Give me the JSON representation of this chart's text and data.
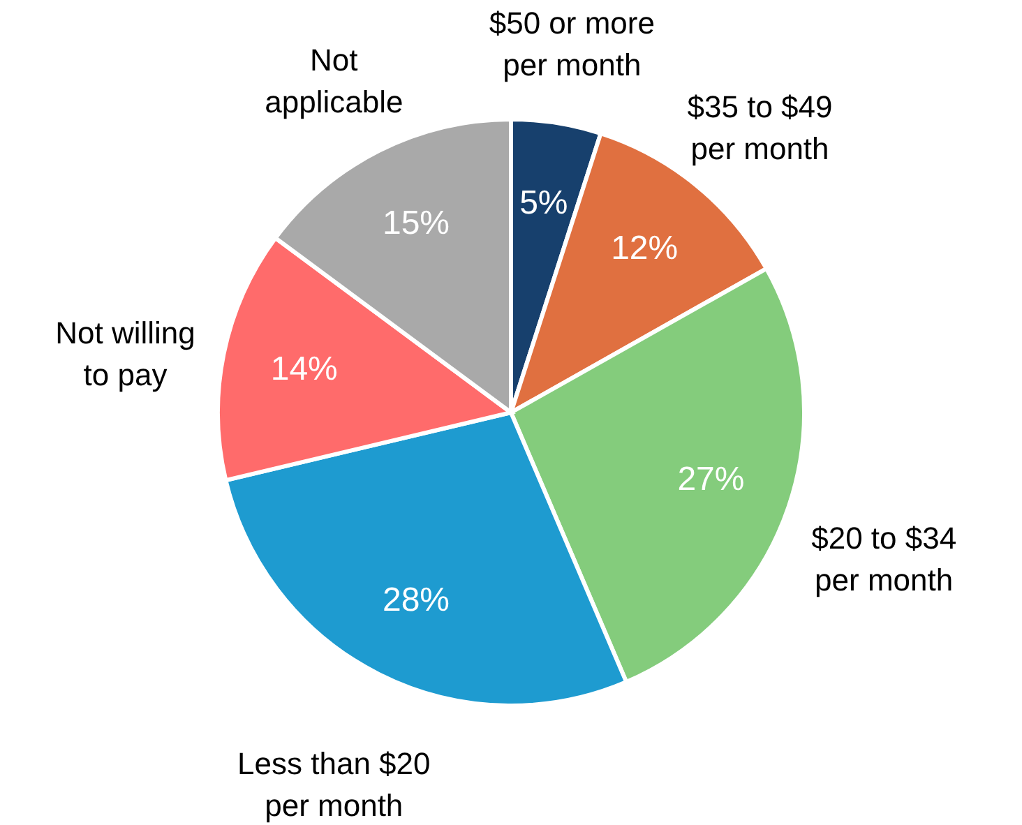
{
  "chart_data": {
    "type": "pie",
    "categories": [
      "$50 or more\nper month",
      "$35 to $49\nper month",
      "$20 to $34\nper month",
      "Less than $20\nper month",
      "Not willing\nto pay",
      "Not\napplicable"
    ],
    "values": [
      5,
      12,
      27,
      28,
      14,
      15
    ],
    "value_labels": [
      "5%",
      "12%",
      "27%",
      "28%",
      "14%",
      "15%"
    ],
    "colors": [
      "#17406d",
      "#e07040",
      "#84cc7c",
      "#1e9bd0",
      "#ff6b6b",
      "#a9a9a9"
    ]
  }
}
